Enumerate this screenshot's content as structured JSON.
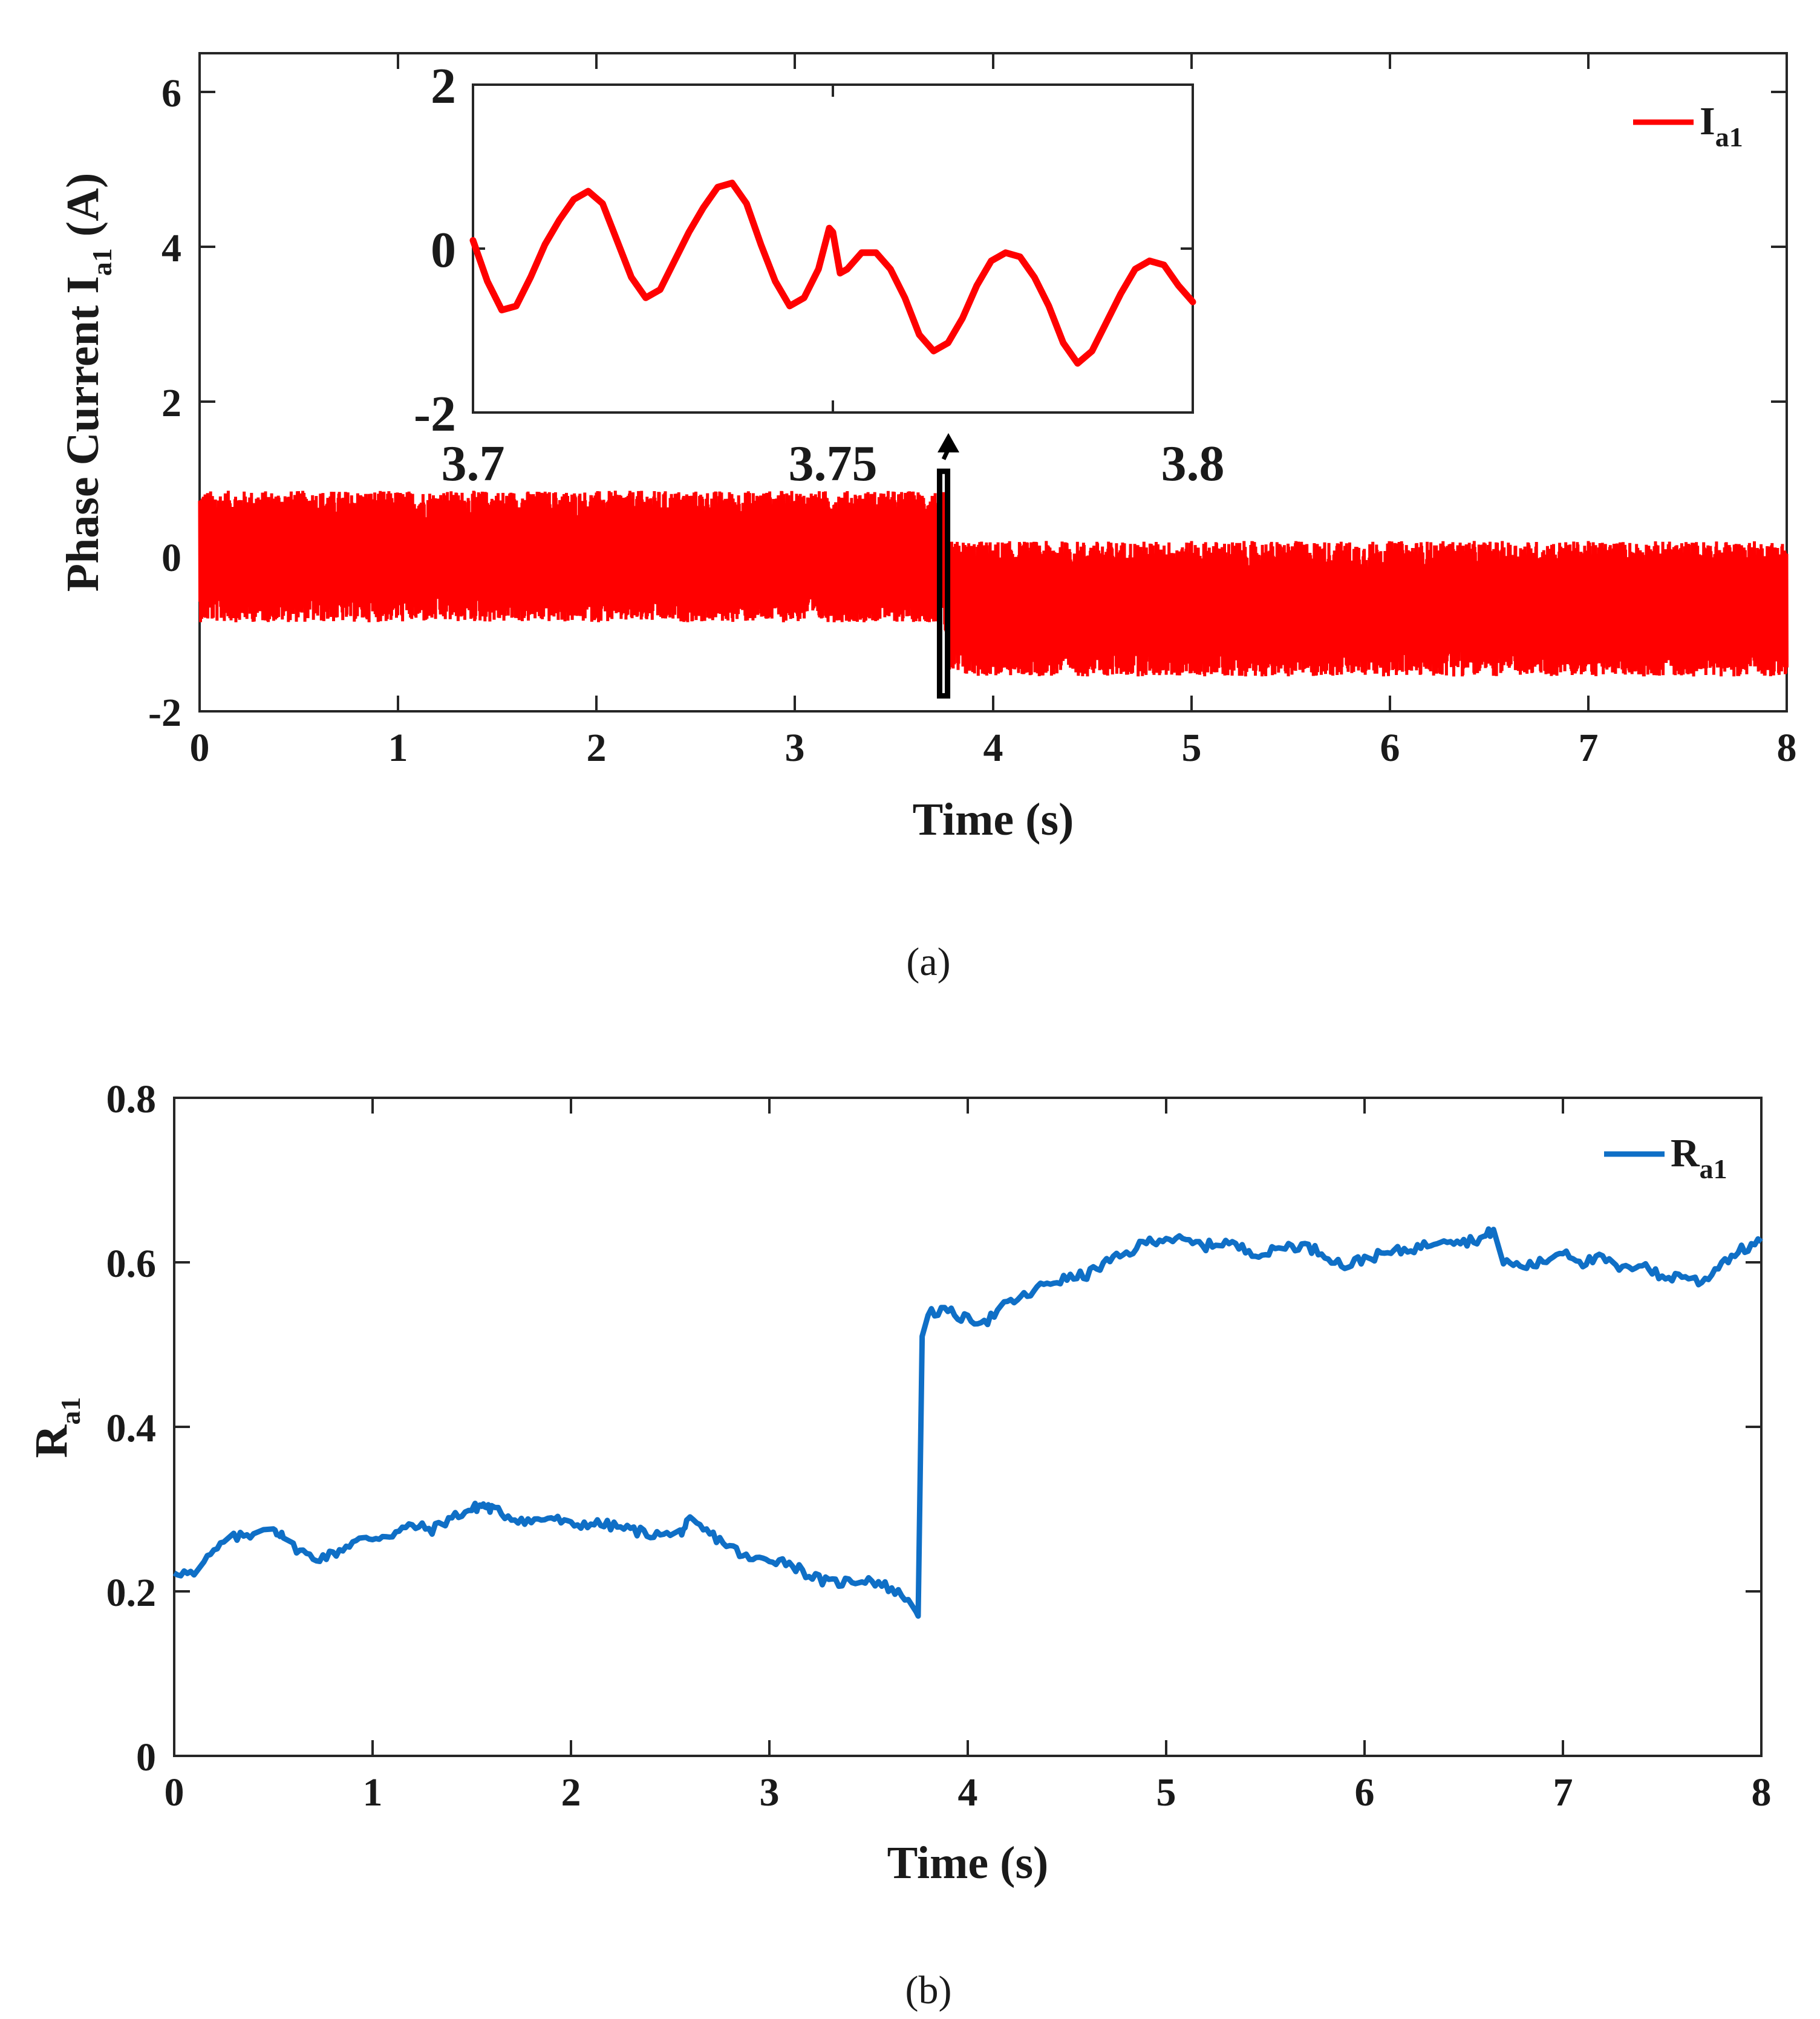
{
  "chart_data": [
    {
      "type": "line",
      "panel": "(a)",
      "xlabel": "Time (s)",
      "ylabel": "Phase Current I",
      "ylabel_sub": "a1",
      "ylabel_unit": " (A)",
      "xlim": [
        0,
        8
      ],
      "ylim": [
        -2,
        6.5
      ],
      "xticks": [
        0,
        1,
        2,
        3,
        4,
        5,
        6,
        7,
        8
      ],
      "yticks": [
        -2,
        0,
        2,
        4,
        6
      ],
      "legend": {
        "label": "I",
        "sub": "a1",
        "position": "top-right"
      },
      "series": [
        {
          "name": "Ia1",
          "color": "#ff0000",
          "description": "noisy phase current",
          "segments": [
            {
              "t_start": 0,
              "t_end": 3.75,
              "mean": 0.05,
              "band_min": -0.85,
              "band_max": 0.85
            },
            {
              "t_start": 3.78,
              "t_end": 8,
              "mean": -0.55,
              "band_min": -1.55,
              "band_max": 0.2
            }
          ]
        }
      ],
      "inset": {
        "xlim": [
          3.7,
          3.8
        ],
        "ylim": [
          -2,
          2
        ],
        "xticks": [
          3.7,
          3.75,
          3.8
        ],
        "yticks": [
          -2,
          0,
          2
        ],
        "zoom_box_time": [
          3.73,
          3.77
        ],
        "zoom_box_current": [
          -1.8,
          1.1
        ],
        "series": {
          "x": [
            3.7,
            3.702,
            3.704,
            3.706,
            3.708,
            3.71,
            3.712,
            3.714,
            3.716,
            3.718,
            3.72,
            3.722,
            3.724,
            3.726,
            3.728,
            3.73,
            3.732,
            3.734,
            3.736,
            3.738,
            3.74,
            3.742,
            3.744,
            3.746,
            3.748,
            3.7495,
            3.75,
            3.751,
            3.752,
            3.754,
            3.756,
            3.758,
            3.76,
            3.762,
            3.764,
            3.766,
            3.768,
            3.77,
            3.772,
            3.774,
            3.776,
            3.778,
            3.78,
            3.782,
            3.784,
            3.786,
            3.788,
            3.79,
            3.792,
            3.794,
            3.796,
            3.798,
            3.8
          ],
          "y": [
            0.1,
            -0.4,
            -0.75,
            -0.7,
            -0.35,
            0.05,
            0.35,
            0.6,
            0.7,
            0.55,
            0.1,
            -0.35,
            -0.6,
            -0.5,
            -0.15,
            0.2,
            0.5,
            0.75,
            0.8,
            0.55,
            0.05,
            -0.4,
            -0.7,
            -0.6,
            -0.25,
            0.25,
            0.2,
            -0.3,
            -0.25,
            -0.05,
            -0.05,
            -0.25,
            -0.6,
            -1.05,
            -1.25,
            -1.15,
            -0.85,
            -0.45,
            -0.15,
            -0.05,
            -0.1,
            -0.35,
            -0.7,
            -1.15,
            -1.4,
            -1.25,
            -0.9,
            -0.55,
            -0.25,
            -0.15,
            -0.2,
            -0.45,
            -0.65
          ]
        }
      }
    },
    {
      "type": "line",
      "panel": "(b)",
      "xlabel": "Time (s)",
      "ylabel": "R",
      "ylabel_sub": "a1",
      "xlim": [
        0,
        8
      ],
      "ylim": [
        0,
        0.8
      ],
      "xticks": [
        0,
        1,
        2,
        3,
        4,
        5,
        6,
        7,
        8
      ],
      "yticks": [
        0,
        0.2,
        0.4,
        0.6,
        0.8
      ],
      "legend": {
        "label": "R",
        "sub": "a1",
        "position": "top-right"
      },
      "series": [
        {
          "name": "Ra1",
          "color": "#0f6fc6",
          "x": [
            0,
            0.1,
            0.15,
            0.25,
            0.3,
            0.4,
            0.45,
            0.5,
            0.55,
            0.6,
            0.7,
            0.8,
            0.9,
            1.0,
            1.1,
            1.2,
            1.3,
            1.4,
            1.5,
            1.55,
            1.6,
            1.7,
            1.8,
            1.9,
            2.0,
            2.1,
            2.2,
            2.3,
            2.4,
            2.5,
            2.55,
            2.6,
            2.7,
            2.8,
            2.9,
            3.0,
            3.1,
            3.2,
            3.3,
            3.4,
            3.5,
            3.6,
            3.7,
            3.74,
            3.75,
            3.77,
            3.8,
            3.9,
            4.0,
            4.1,
            4.2,
            4.3,
            4.4,
            4.5,
            4.6,
            4.7,
            4.8,
            4.9,
            5.0,
            5.1,
            5.2,
            5.3,
            5.4,
            5.5,
            5.6,
            5.7,
            5.8,
            5.9,
            6.0,
            6.1,
            6.2,
            6.3,
            6.4,
            6.5,
            6.6,
            6.65,
            6.7,
            6.8,
            6.9,
            7.0,
            7.1,
            7.2,
            7.3,
            7.4,
            7.5,
            7.6,
            7.7,
            7.8,
            7.9,
            8.0
          ],
          "y": [
            0.225,
            0.22,
            0.235,
            0.26,
            0.265,
            0.27,
            0.275,
            0.278,
            0.265,
            0.255,
            0.24,
            0.245,
            0.26,
            0.265,
            0.27,
            0.28,
            0.275,
            0.29,
            0.3,
            0.305,
            0.3,
            0.29,
            0.285,
            0.29,
            0.28,
            0.283,
            0.28,
            0.275,
            0.27,
            0.268,
            0.272,
            0.285,
            0.27,
            0.255,
            0.238,
            0.24,
            0.235,
            0.22,
            0.21,
            0.212,
            0.215,
            0.205,
            0.19,
            0.175,
            0.17,
            0.51,
            0.54,
            0.54,
            0.53,
            0.53,
            0.55,
            0.56,
            0.575,
            0.58,
            0.585,
            0.6,
            0.61,
            0.625,
            0.63,
            0.625,
            0.62,
            0.625,
            0.615,
            0.61,
            0.62,
            0.62,
            0.61,
            0.595,
            0.605,
            0.61,
            0.615,
            0.62,
            0.63,
            0.625,
            0.63,
            0.64,
            0.6,
            0.595,
            0.6,
            0.615,
            0.6,
            0.605,
            0.59,
            0.6,
            0.58,
            0.585,
            0.575,
            0.6,
            0.615,
            0.625
          ]
        }
      ]
    }
  ]
}
